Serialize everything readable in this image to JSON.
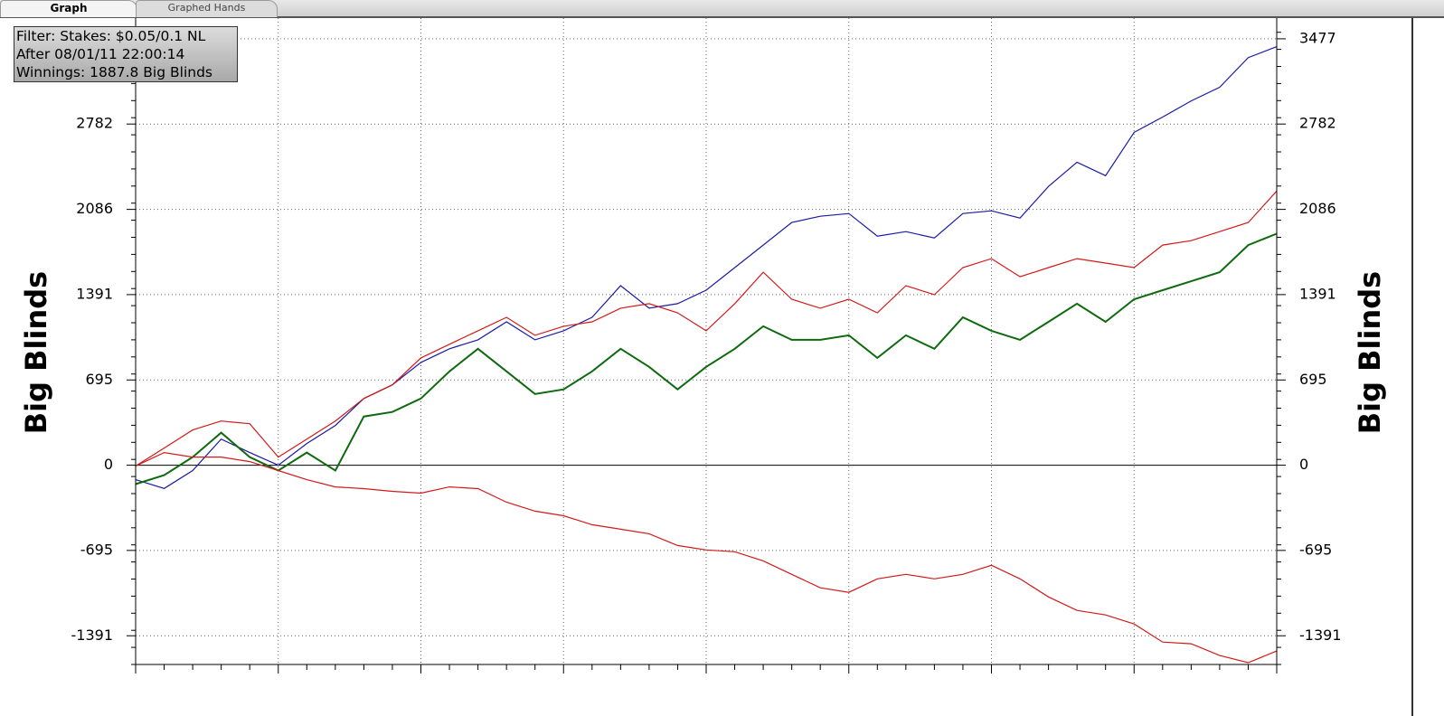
{
  "tabs": [
    "Graph",
    "Graphed Hands"
  ],
  "chart_data": {
    "type": "line",
    "annotations": [
      "Filter: Stakes: $0.05/0.1 NL",
      "After 08/01/11 22:00:14",
      "Winnings: 1887.8 Big Blinds"
    ],
    "ylabel": "Big Blinds",
    "y2label": "Big Blinds",
    "ylim": [
      -1625,
      3646
    ],
    "yticks": [
      -1391,
      -695,
      0,
      695,
      1391,
      2086,
      2782,
      3477
    ],
    "grid": true,
    "series": [
      {
        "color": "#1a1aa6",
        "values": [
          -118,
          -190,
          -44,
          213,
          103,
          0,
          177,
          324,
          544,
          655,
          838,
          949,
          1022,
          1169,
          1022,
          1096,
          1206,
          1464,
          1280,
          1317,
          1427,
          1611,
          1795,
          1979,
          2030,
          2052,
          1868,
          1905,
          1853,
          2052,
          2074,
          2015,
          2273,
          2471,
          2361,
          2714,
          2839,
          2971,
          3082,
          3324,
          3413
        ]
      },
      {
        "color": "#d21a1a",
        "values": [
          -7,
          140,
          287,
          360,
          338,
          66,
          213,
          360,
          544,
          655,
          875,
          986,
          1096,
          1206,
          1059,
          1133,
          1169,
          1280,
          1317,
          1243,
          1096,
          1317,
          1574,
          1353,
          1280,
          1353,
          1243,
          1464,
          1390,
          1611,
          1684,
          1537,
          1611,
          1684,
          1648,
          1611,
          1795,
          1831,
          1905,
          1979,
          2236
        ]
      },
      {
        "color": "#0e6a0e",
        "values": [
          -154,
          -81,
          66,
          265,
          66,
          -44,
          103,
          -44,
          397,
          434,
          544,
          765,
          949,
          765,
          581,
          618,
          765,
          949,
          802,
          618,
          802,
          949,
          1133,
          1022,
          1022,
          1059,
          875,
          1059,
          949,
          1206,
          1096,
          1022,
          1169,
          1317,
          1169,
          1353,
          1427,
          1500,
          1574,
          1795,
          1888
        ]
      },
      {
        "color": "#d21a1a",
        "values": [
          -7,
          103,
          66,
          66,
          29,
          -44,
          -118,
          -177,
          -191,
          -213,
          -228,
          -177,
          -191,
          -302,
          -375,
          -412,
          -485,
          -522,
          -559,
          -655,
          -691,
          -706,
          -780,
          -890,
          -1000,
          -1037,
          -927,
          -890,
          -927,
          -890,
          -816,
          -927,
          -1074,
          -1184,
          -1221,
          -1295,
          -1442,
          -1456,
          -1552,
          -1610,
          -1515
        ]
      }
    ]
  }
}
